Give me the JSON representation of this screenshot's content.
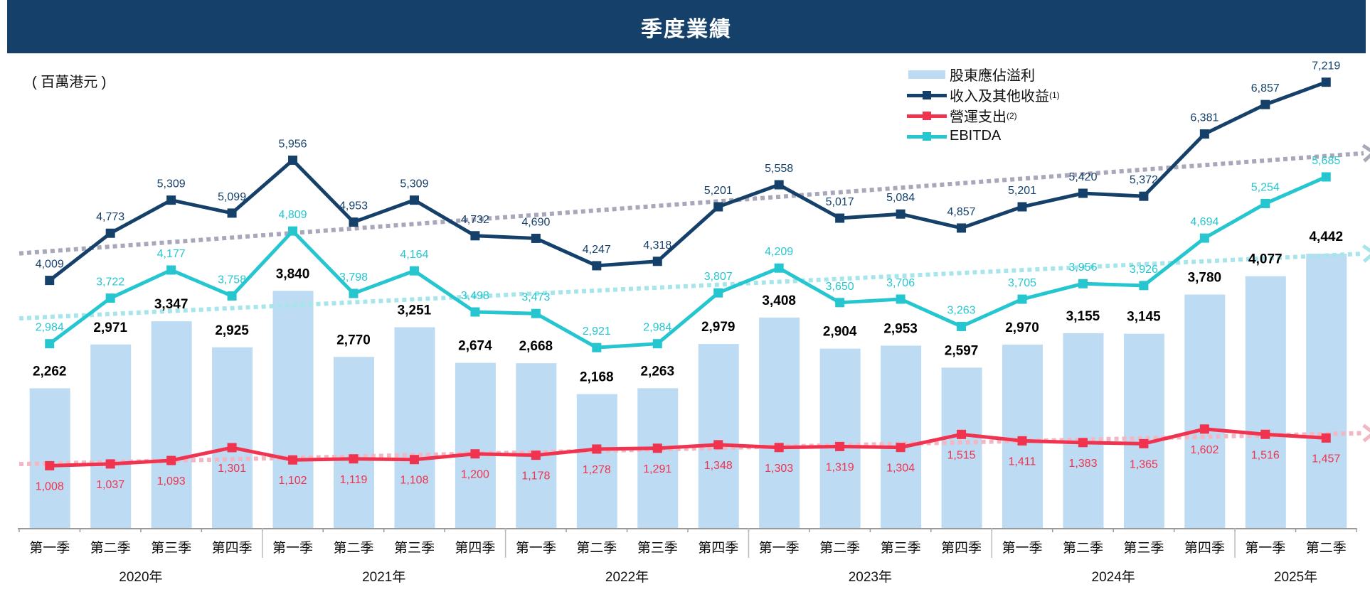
{
  "title": "季度業績",
  "unit": "( 百萬港元 )",
  "colors": {
    "title_bar": "#15406a",
    "bar": "#bddbf2",
    "revenue": "#15406a",
    "opex": "#f0334f",
    "ebitda": "#26c6d0",
    "trend_revenue": "#a9a7ba",
    "trend_ebitda": "#a6e6eb",
    "trend_opex": "#f2b7c3"
  },
  "chart_data": {
    "type": "bar+line",
    "categories": [
      "第一季",
      "第二季",
      "第三季",
      "第四季",
      "第一季",
      "第二季",
      "第三季",
      "第四季",
      "第一季",
      "第二季",
      "第三季",
      "第四季",
      "第一季",
      "第二季",
      "第三季",
      "第四季",
      "第一季",
      "第二季",
      "第三季",
      "第四季",
      "第一季",
      "第二季"
    ],
    "years": [
      {
        "label": "2020年",
        "quarters": 4
      },
      {
        "label": "2021年",
        "quarters": 4
      },
      {
        "label": "2022年",
        "quarters": 4
      },
      {
        "label": "2023年",
        "quarters": 4
      },
      {
        "label": "2024年",
        "quarters": 4
      },
      {
        "label": "2025年",
        "quarters": 2
      }
    ],
    "series": [
      {
        "key": "profit",
        "name": "股東應佔溢利",
        "note": "",
        "type": "bar",
        "values": [
          2262,
          2971,
          3347,
          2925,
          3840,
          2770,
          3251,
          2674,
          2668,
          2168,
          2263,
          2979,
          3408,
          2904,
          2953,
          2597,
          2970,
          3155,
          3145,
          3780,
          4077,
          4442
        ]
      },
      {
        "key": "revenue",
        "name": "收入及其他收益",
        "note": "(1)",
        "type": "line",
        "values": [
          4009,
          4773,
          5309,
          5099,
          5956,
          4953,
          5309,
          4732,
          4690,
          4247,
          4318,
          5201,
          5558,
          5017,
          5084,
          4857,
          5201,
          5420,
          5372,
          6381,
          6857,
          7219
        ]
      },
      {
        "key": "opex",
        "name": "營運支出",
        "note": "(2)",
        "type": "line",
        "values": [
          1008,
          1037,
          1093,
          1301,
          1102,
          1119,
          1108,
          1200,
          1178,
          1278,
          1291,
          1348,
          1303,
          1319,
          1304,
          1515,
          1411,
          1383,
          1365,
          1602,
          1516,
          1457
        ]
      },
      {
        "key": "ebitda",
        "name": "EBITDA",
        "note": "",
        "type": "line",
        "values": [
          2984,
          3722,
          4177,
          3758,
          4809,
          3798,
          4164,
          3498,
          3473,
          2921,
          2984,
          3807,
          4209,
          3650,
          3706,
          3263,
          3705,
          3956,
          3926,
          4694,
          5254,
          5685
        ]
      }
    ],
    "trend_lines": [
      "revenue",
      "ebitda",
      "opex"
    ],
    "ylim": [
      0,
      8550
    ],
    "y_axis_shown": false,
    "grid": false,
    "legend": "top-right"
  }
}
